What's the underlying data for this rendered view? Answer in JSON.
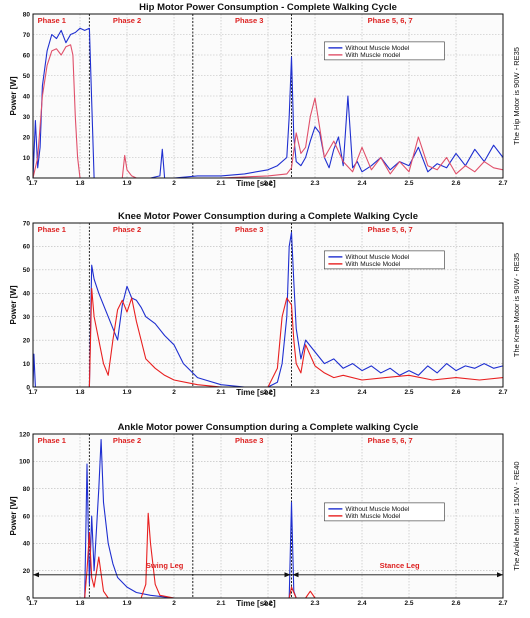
{
  "chart_data": [
    {
      "type": "line",
      "title": "Hip Motor Power Consumption - Complete Walking Cycle",
      "xlabel": "Time [sec]",
      "ylabel": "Power [W]",
      "side_label": "The Hip Motor is 90W - RE35",
      "xlim": [
        1.7,
        2.7
      ],
      "ylim": [
        0,
        80
      ],
      "xticks": [
        "1.7",
        "1.8",
        "1.9",
        "2",
        "2.1",
        "2.2",
        "2.3",
        "2.4",
        "2.5",
        "2.6",
        "2.7"
      ],
      "yticks": [
        "0",
        "10",
        "20",
        "30",
        "40",
        "50",
        "60",
        "70",
        "80"
      ],
      "phases": [
        {
          "label": "Phase 1",
          "x": 1.74
        },
        {
          "label": "Phase 2",
          "x": 1.9
        },
        {
          "label": "Phase 3",
          "x": 2.16
        },
        {
          "label": "Phase 5, 6, 7",
          "x": 2.46
        }
      ],
      "phase_lines": [
        1.82,
        2.04,
        2.25
      ],
      "legend": {
        "position": "top-right",
        "entries": [
          "Without Muscle Model",
          "With Muscle model"
        ]
      },
      "grid": true,
      "series": [
        {
          "name": "Without Muscle Model",
          "color": "#1f2fd0",
          "x": [
            1.7,
            1.705,
            1.71,
            1.715,
            1.72,
            1.73,
            1.74,
            1.75,
            1.76,
            1.77,
            1.78,
            1.79,
            1.8,
            1.81,
            1.82,
            1.83,
            1.84,
            1.86,
            1.88,
            1.9,
            1.92,
            1.95,
            1.97,
            1.975,
            1.98,
            2.0,
            2.05,
            2.1,
            2.15,
            2.2,
            2.22,
            2.24,
            2.245,
            2.25,
            2.255,
            2.26,
            2.27,
            2.28,
            2.29,
            2.3,
            2.31,
            2.32,
            2.33,
            2.34,
            2.35,
            2.36,
            2.37,
            2.38,
            2.39,
            2.4,
            2.42,
            2.44,
            2.46,
            2.48,
            2.5,
            2.52,
            2.54,
            2.56,
            2.58,
            2.6,
            2.62,
            2.64,
            2.66,
            2.68,
            2.7
          ],
          "y": [
            0,
            28,
            5,
            15,
            45,
            62,
            70,
            68,
            72,
            66,
            70,
            71,
            73,
            72,
            73,
            0,
            0,
            0,
            0,
            0,
            0,
            0,
            1,
            14,
            0,
            0,
            1,
            1,
            2,
            4,
            6,
            10,
            30,
            59,
            20,
            8,
            6,
            10,
            18,
            25,
            22,
            10,
            5,
            14,
            20,
            6,
            40,
            5,
            8,
            3,
            6,
            10,
            4,
            8,
            6,
            15,
            3,
            7,
            5,
            12,
            6,
            14,
            8,
            16,
            10
          ]
        },
        {
          "name": "With Muscle model",
          "color": "#e0506a",
          "x": [
            1.7,
            1.71,
            1.72,
            1.73,
            1.74,
            1.75,
            1.76,
            1.77,
            1.78,
            1.785,
            1.79,
            1.795,
            1.8,
            1.81,
            1.89,
            1.895,
            1.9,
            1.91,
            1.92,
            1.95,
            2.0,
            2.1,
            2.2,
            2.24,
            2.25,
            2.26,
            2.27,
            2.28,
            2.29,
            2.3,
            2.32,
            2.34,
            2.36,
            2.38,
            2.4,
            2.42,
            2.44,
            2.46,
            2.48,
            2.5,
            2.52,
            2.54,
            2.56,
            2.58,
            2.6,
            2.62,
            2.64,
            2.66,
            2.68,
            2.7
          ],
          "y": [
            0,
            10,
            40,
            55,
            62,
            63,
            60,
            64,
            65,
            60,
            30,
            10,
            0,
            0,
            0,
            11,
            4,
            1,
            0,
            0,
            0,
            0,
            1,
            2,
            5,
            22,
            12,
            15,
            30,
            39,
            10,
            18,
            8,
            3,
            15,
            4,
            10,
            2,
            8,
            3,
            20,
            6,
            4,
            10,
            2,
            6,
            3,
            8,
            5,
            4
          ]
        }
      ]
    },
    {
      "type": "line",
      "title": "Knee Motor Power Consumption during a Complete Walking Cycle",
      "xlabel": "Time [sec]",
      "ylabel": "Power [W]",
      "side_label": "The Knee Motor is 90W - RE35",
      "xlim": [
        1.7,
        2.7
      ],
      "ylim": [
        0,
        70
      ],
      "xticks": [
        "1.7",
        "1.8",
        "1.9",
        "2",
        "2.1",
        "2.2",
        "2.3",
        "2.4",
        "2.5",
        "2.6",
        "2.7"
      ],
      "yticks": [
        "0",
        "10",
        "20",
        "30",
        "40",
        "50",
        "60",
        "70"
      ],
      "phases": [
        {
          "label": "Phase 1",
          "x": 1.74
        },
        {
          "label": "Phase 2",
          "x": 1.9
        },
        {
          "label": "Phase 3",
          "x": 2.16
        },
        {
          "label": "Phase 5, 6, 7",
          "x": 2.46
        }
      ],
      "phase_lines": [
        1.82,
        2.04,
        2.25
      ],
      "legend": {
        "position": "top-right",
        "entries": [
          "Without Muscle Model",
          "With Muscle Model"
        ]
      },
      "grid": true,
      "series": [
        {
          "name": "Without Muscle Model",
          "color": "#1f2fd0",
          "x": [
            1.7,
            1.702,
            1.705,
            1.82,
            1.825,
            1.83,
            1.84,
            1.86,
            1.88,
            1.89,
            1.9,
            1.91,
            1.92,
            1.93,
            1.94,
            1.96,
            1.98,
            2.0,
            2.02,
            2.05,
            2.1,
            2.15,
            2.2,
            2.22,
            2.23,
            2.24,
            2.245,
            2.25,
            2.255,
            2.26,
            2.27,
            2.28,
            2.3,
            2.32,
            2.34,
            2.36,
            2.38,
            2.4,
            2.42,
            2.44,
            2.46,
            2.48,
            2.5,
            2.52,
            2.54,
            2.56,
            2.58,
            2.6,
            2.62,
            2.64,
            2.66,
            2.68,
            2.7
          ],
          "y": [
            0,
            14,
            0,
            0,
            52,
            46,
            40,
            30,
            20,
            35,
            43,
            38,
            37,
            34,
            30,
            27,
            22,
            18,
            10,
            4,
            1,
            0,
            0,
            2,
            10,
            30,
            60,
            66,
            45,
            25,
            12,
            20,
            15,
            10,
            12,
            8,
            10,
            7,
            9,
            6,
            8,
            5,
            7,
            5,
            9,
            6,
            10,
            7,
            9,
            8,
            10,
            8,
            9
          ]
        },
        {
          "name": "With Muscle Model",
          "color": "#e82020",
          "x": [
            1.82,
            1.825,
            1.83,
            1.84,
            1.85,
            1.86,
            1.87,
            1.88,
            1.89,
            1.9,
            1.91,
            1.92,
            1.93,
            1.94,
            1.96,
            1.98,
            2.0,
            2.05,
            2.1,
            2.2,
            2.22,
            2.23,
            2.24,
            2.25,
            2.255,
            2.26,
            2.27,
            2.28,
            2.3,
            2.32,
            2.34,
            2.36,
            2.4,
            2.45,
            2.5,
            2.55,
            2.6,
            2.65,
            2.7
          ],
          "y": [
            0,
            42,
            30,
            20,
            10,
            5,
            20,
            33,
            37,
            32,
            38,
            28,
            20,
            12,
            8,
            5,
            3,
            1,
            0,
            0,
            8,
            30,
            38,
            35,
            20,
            10,
            6,
            18,
            9,
            6,
            4,
            5,
            3,
            4,
            5,
            3,
            4,
            3,
            4
          ]
        }
      ]
    },
    {
      "type": "line",
      "title": "Ankle Motor power Consumption during a Complete walking Cycle",
      "xlabel": "Time [sec]",
      "ylabel": "Power [W]",
      "side_label": "The Ankle Motor is 150W - RE40",
      "xlim": [
        1.7,
        2.7
      ],
      "ylim": [
        0,
        120
      ],
      "xticks": [
        "1.7",
        "1.8",
        "1.9",
        "2",
        "2.1",
        "2.2",
        "2.3",
        "2.4",
        "2.5",
        "2.6",
        "2.7"
      ],
      "yticks": [
        "0",
        "20",
        "40",
        "60",
        "80",
        "100",
        "120"
      ],
      "phases": [
        {
          "label": "Phase 1",
          "x": 1.74
        },
        {
          "label": "Phase 2",
          "x": 1.9
        },
        {
          "label": "Phase 3",
          "x": 2.16
        },
        {
          "label": "Phase 5, 6, 7",
          "x": 2.46
        }
      ],
      "phase_lines": [
        1.82,
        2.04,
        2.25
      ],
      "legend": {
        "position": "center-right",
        "entries": [
          "Without Muscle Model",
          "With Muscle Model"
        ]
      },
      "grid": true,
      "annotations": [
        {
          "text": "Swing Leg",
          "x": 1.98,
          "y": 22
        },
        {
          "text": "Stance Leg",
          "x": 2.48,
          "y": 22
        }
      ],
      "arrows": {
        "y": 17,
        "left": 1.7,
        "mid": 2.25,
        "right": 2.7
      },
      "series": [
        {
          "name": "Without Muscle Model",
          "color": "#1f2fd0",
          "x": [
            1.7,
            1.81,
            1.815,
            1.82,
            1.825,
            1.83,
            1.84,
            1.845,
            1.85,
            1.86,
            1.87,
            1.88,
            1.9,
            1.92,
            1.95,
            2.0,
            2.1,
            2.2,
            2.245,
            2.25,
            2.255,
            2.26,
            2.3,
            2.4,
            2.5,
            2.6,
            2.7
          ],
          "y": [
            0,
            0,
            98,
            10,
            60,
            20,
            80,
            116,
            70,
            40,
            25,
            15,
            8,
            4,
            2,
            0,
            0,
            0,
            0,
            70,
            5,
            0,
            0,
            0,
            0,
            0,
            0
          ]
        },
        {
          "name": "With Muscle Model",
          "color": "#e82020",
          "x": [
            1.7,
            1.81,
            1.815,
            1.82,
            1.825,
            1.83,
            1.84,
            1.85,
            1.86,
            1.93,
            1.94,
            1.945,
            1.95,
            1.96,
            1.97,
            2.0,
            2.2,
            2.245,
            2.25,
            2.26,
            2.28,
            2.29,
            2.3,
            2.7
          ],
          "y": [
            0,
            0,
            20,
            48,
            15,
            8,
            30,
            5,
            0,
            0,
            10,
            62,
            40,
            10,
            2,
            0,
            0,
            0,
            8,
            0,
            0,
            5,
            0,
            0
          ]
        }
      ]
    }
  ]
}
